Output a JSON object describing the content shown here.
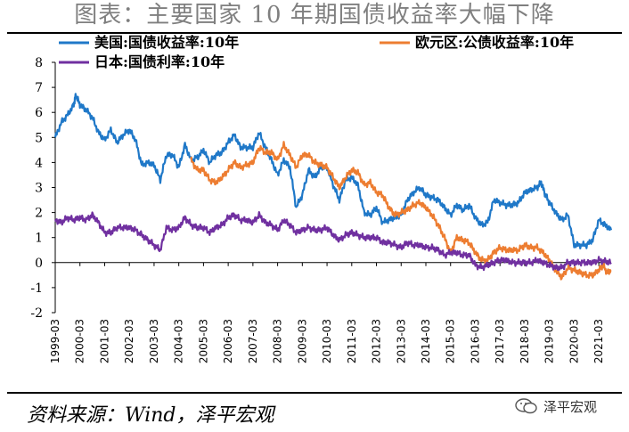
{
  "page": {
    "title": "图表：主要国家 10 年期国债收益率大幅下降",
    "source": "资料来源：Wind，泽平宏观",
    "watermark": "泽平宏观"
  },
  "chart_data": {
    "type": "line",
    "title": "",
    "xlabel": "",
    "ylabel": "",
    "ylim": [
      -2,
      8
    ],
    "yticks": [
      8,
      7,
      6,
      5,
      4,
      3,
      2,
      1,
      0,
      -1,
      -2
    ],
    "x_range": [
      "1999-03",
      "2021-09"
    ],
    "xticks": [
      "1999-03",
      "2000-03",
      "2001-03",
      "2002-03",
      "2003-03",
      "2004-03",
      "2005-03",
      "2006-03",
      "2007-03",
      "2008-03",
      "2009-03",
      "2010-03",
      "2011-03",
      "2012-03",
      "2013-03",
      "2014-03",
      "2015-03",
      "2016-03",
      "2017-03",
      "2018-03",
      "2019-03",
      "2020-03",
      "2021-03"
    ],
    "legend_position": "top",
    "grid": false,
    "series": [
      {
        "name": "美国:国债收益率:10年",
        "color": "#1f78c8",
        "points": [
          [
            "1999-03",
            5.0
          ],
          [
            "1999-06",
            5.6
          ],
          [
            "1999-09",
            5.9
          ],
          [
            "1999-12",
            6.3
          ],
          [
            "2000-01",
            6.7
          ],
          [
            "2000-03",
            6.3
          ],
          [
            "2000-06",
            6.1
          ],
          [
            "2000-09",
            5.8
          ],
          [
            "2000-12",
            5.2
          ],
          [
            "2001-03",
            4.9
          ],
          [
            "2001-06",
            5.3
          ],
          [
            "2001-09",
            4.8
          ],
          [
            "2001-12",
            5.1
          ],
          [
            "2002-03",
            5.3
          ],
          [
            "2002-06",
            4.9
          ],
          [
            "2002-09",
            3.9
          ],
          [
            "2002-12",
            4.0
          ],
          [
            "2003-03",
            3.9
          ],
          [
            "2003-06",
            3.3
          ],
          [
            "2003-09",
            4.3
          ],
          [
            "2003-12",
            4.3
          ],
          [
            "2004-03",
            3.8
          ],
          [
            "2004-06",
            4.7
          ],
          [
            "2004-09",
            4.1
          ],
          [
            "2004-12",
            4.2
          ],
          [
            "2005-03",
            4.5
          ],
          [
            "2005-06",
            4.0
          ],
          [
            "2005-09",
            4.3
          ],
          [
            "2005-12",
            4.4
          ],
          [
            "2006-03",
            4.8
          ],
          [
            "2006-06",
            5.1
          ],
          [
            "2006-09",
            4.6
          ],
          [
            "2006-12",
            4.6
          ],
          [
            "2007-03",
            4.6
          ],
          [
            "2007-06",
            5.2
          ],
          [
            "2007-09",
            4.6
          ],
          [
            "2007-12",
            4.1
          ],
          [
            "2008-03",
            3.5
          ],
          [
            "2008-06",
            4.1
          ],
          [
            "2008-09",
            3.8
          ],
          [
            "2008-12",
            2.2
          ],
          [
            "2009-03",
            2.7
          ],
          [
            "2009-06",
            3.7
          ],
          [
            "2009-09",
            3.4
          ],
          [
            "2009-12",
            3.8
          ],
          [
            "2010-03",
            3.8
          ],
          [
            "2010-06",
            3.1
          ],
          [
            "2010-09",
            2.5
          ],
          [
            "2010-12",
            3.3
          ],
          [
            "2011-03",
            3.4
          ],
          [
            "2011-06",
            3.1
          ],
          [
            "2011-09",
            2.0
          ],
          [
            "2011-12",
            1.9
          ],
          [
            "2012-03",
            2.2
          ],
          [
            "2012-06",
            1.6
          ],
          [
            "2012-09",
            1.7
          ],
          [
            "2012-12",
            1.8
          ],
          [
            "2013-03",
            1.9
          ],
          [
            "2013-06",
            2.5
          ],
          [
            "2013-09",
            2.8
          ],
          [
            "2013-12",
            3.0
          ],
          [
            "2014-03",
            2.7
          ],
          [
            "2014-06",
            2.6
          ],
          [
            "2014-09",
            2.5
          ],
          [
            "2014-12",
            2.2
          ],
          [
            "2015-03",
            1.9
          ],
          [
            "2015-06",
            2.3
          ],
          [
            "2015-09",
            2.1
          ],
          [
            "2015-12",
            2.3
          ],
          [
            "2016-03",
            1.8
          ],
          [
            "2016-06",
            1.5
          ],
          [
            "2016-09",
            1.6
          ],
          [
            "2016-12",
            2.5
          ],
          [
            "2017-03",
            2.4
          ],
          [
            "2017-06",
            2.3
          ],
          [
            "2017-09",
            2.3
          ],
          [
            "2017-12",
            2.4
          ],
          [
            "2018-03",
            2.8
          ],
          [
            "2018-06",
            2.9
          ],
          [
            "2018-09",
            3.0
          ],
          [
            "2018-11",
            3.2
          ],
          [
            "2019-01",
            2.7
          ],
          [
            "2019-03",
            2.4
          ],
          [
            "2019-06",
            2.0
          ],
          [
            "2019-09",
            1.7
          ],
          [
            "2019-12",
            1.9
          ],
          [
            "2020-03",
            0.7
          ],
          [
            "2020-06",
            0.7
          ],
          [
            "2020-09",
            0.7
          ],
          [
            "2020-12",
            0.9
          ],
          [
            "2021-03",
            1.7
          ],
          [
            "2021-06",
            1.5
          ],
          [
            "2021-09",
            1.3
          ]
        ]
      },
      {
        "name": "欧元区:公债收益率:10年",
        "color": "#ed7d31",
        "points": [
          [
            "2004-09",
            4.1
          ],
          [
            "2004-12",
            3.7
          ],
          [
            "2005-03",
            3.7
          ],
          [
            "2005-06",
            3.3
          ],
          [
            "2005-09",
            3.2
          ],
          [
            "2005-12",
            3.4
          ],
          [
            "2006-03",
            3.7
          ],
          [
            "2006-06",
            4.0
          ],
          [
            "2006-09",
            3.8
          ],
          [
            "2006-12",
            3.9
          ],
          [
            "2007-03",
            4.0
          ],
          [
            "2007-06",
            4.6
          ],
          [
            "2007-09",
            4.4
          ],
          [
            "2007-12",
            4.4
          ],
          [
            "2008-03",
            4.1
          ],
          [
            "2008-06",
            4.7
          ],
          [
            "2008-09",
            4.3
          ],
          [
            "2008-12",
            3.8
          ],
          [
            "2009-03",
            4.3
          ],
          [
            "2009-06",
            4.3
          ],
          [
            "2009-09",
            4.0
          ],
          [
            "2009-12",
            3.9
          ],
          [
            "2010-03",
            3.8
          ],
          [
            "2010-06",
            3.4
          ],
          [
            "2010-09",
            3.0
          ],
          [
            "2010-12",
            3.4
          ],
          [
            "2011-03",
            3.7
          ],
          [
            "2011-06",
            3.6
          ],
          [
            "2011-09",
            3.1
          ],
          [
            "2011-12",
            3.2
          ],
          [
            "2012-03",
            2.8
          ],
          [
            "2012-06",
            2.7
          ],
          [
            "2012-09",
            2.2
          ],
          [
            "2012-12",
            1.9
          ],
          [
            "2013-03",
            2.0
          ],
          [
            "2013-06",
            2.1
          ],
          [
            "2013-09",
            2.3
          ],
          [
            "2013-12",
            2.4
          ],
          [
            "2014-03",
            2.2
          ],
          [
            "2014-06",
            1.9
          ],
          [
            "2014-09",
            1.5
          ],
          [
            "2014-12",
            1.0
          ],
          [
            "2015-03",
            0.4
          ],
          [
            "2015-06",
            1.0
          ],
          [
            "2015-09",
            0.9
          ],
          [
            "2015-12",
            0.8
          ],
          [
            "2016-03",
            0.4
          ],
          [
            "2016-06",
            0.1
          ],
          [
            "2016-09",
            0.1
          ],
          [
            "2016-12",
            0.4
          ],
          [
            "2017-03",
            0.6
          ],
          [
            "2017-06",
            0.5
          ],
          [
            "2017-09",
            0.5
          ],
          [
            "2017-12",
            0.5
          ],
          [
            "2018-03",
            0.7
          ],
          [
            "2018-06",
            0.6
          ],
          [
            "2018-09",
            0.6
          ],
          [
            "2018-12",
            0.4
          ],
          [
            "2019-03",
            0.1
          ],
          [
            "2019-06",
            -0.3
          ],
          [
            "2019-09",
            -0.6
          ],
          [
            "2019-12",
            -0.2
          ],
          [
            "2020-03",
            -0.3
          ],
          [
            "2020-06",
            -0.4
          ],
          [
            "2020-09",
            -0.5
          ],
          [
            "2020-12",
            -0.5
          ],
          [
            "2021-03",
            -0.3
          ],
          [
            "2021-05",
            -0.1
          ],
          [
            "2021-07",
            -0.4
          ],
          [
            "2021-09",
            -0.3
          ]
        ]
      },
      {
        "name": "日本:国债利率:10年",
        "color": "#7030a0",
        "points": [
          [
            "1999-03",
            1.7
          ],
          [
            "1999-06",
            1.6
          ],
          [
            "1999-09",
            1.8
          ],
          [
            "1999-12",
            1.7
          ],
          [
            "2000-03",
            1.8
          ],
          [
            "2000-06",
            1.7
          ],
          [
            "2000-09",
            1.9
          ],
          [
            "2000-12",
            1.6
          ],
          [
            "2001-03",
            1.2
          ],
          [
            "2001-06",
            1.2
          ],
          [
            "2001-09",
            1.4
          ],
          [
            "2001-12",
            1.4
          ],
          [
            "2002-03",
            1.4
          ],
          [
            "2002-06",
            1.3
          ],
          [
            "2002-09",
            1.1
          ],
          [
            "2002-12",
            0.9
          ],
          [
            "2003-03",
            0.7
          ],
          [
            "2003-06",
            0.5
          ],
          [
            "2003-09",
            1.4
          ],
          [
            "2003-12",
            1.3
          ],
          [
            "2004-03",
            1.4
          ],
          [
            "2004-06",
            1.8
          ],
          [
            "2004-09",
            1.5
          ],
          [
            "2004-12",
            1.4
          ],
          [
            "2005-03",
            1.4
          ],
          [
            "2005-06",
            1.2
          ],
          [
            "2005-09",
            1.4
          ],
          [
            "2005-12",
            1.5
          ],
          [
            "2006-03",
            1.8
          ],
          [
            "2006-06",
            1.9
          ],
          [
            "2006-09",
            1.7
          ],
          [
            "2006-12",
            1.7
          ],
          [
            "2007-03",
            1.6
          ],
          [
            "2007-06",
            1.9
          ],
          [
            "2007-09",
            1.6
          ],
          [
            "2007-12",
            1.5
          ],
          [
            "2008-03",
            1.3
          ],
          [
            "2008-06",
            1.7
          ],
          [
            "2008-09",
            1.5
          ],
          [
            "2008-12",
            1.2
          ],
          [
            "2009-03",
            1.3
          ],
          [
            "2009-06",
            1.4
          ],
          [
            "2009-09",
            1.3
          ],
          [
            "2009-12",
            1.3
          ],
          [
            "2010-03",
            1.4
          ],
          [
            "2010-06",
            1.1
          ],
          [
            "2010-09",
            0.9
          ],
          [
            "2010-12",
            1.1
          ],
          [
            "2011-03",
            1.2
          ],
          [
            "2011-06",
            1.1
          ],
          [
            "2011-09",
            1.0
          ],
          [
            "2011-12",
            1.0
          ],
          [
            "2012-03",
            1.0
          ],
          [
            "2012-06",
            0.8
          ],
          [
            "2012-09",
            0.8
          ],
          [
            "2012-12",
            0.7
          ],
          [
            "2013-03",
            0.6
          ],
          [
            "2013-06",
            0.8
          ],
          [
            "2013-09",
            0.7
          ],
          [
            "2013-12",
            0.7
          ],
          [
            "2014-03",
            0.6
          ],
          [
            "2014-06",
            0.6
          ],
          [
            "2014-09",
            0.5
          ],
          [
            "2014-12",
            0.3
          ],
          [
            "2015-03",
            0.4
          ],
          [
            "2015-06",
            0.4
          ],
          [
            "2015-09",
            0.3
          ],
          [
            "2015-12",
            0.3
          ],
          [
            "2016-03",
            -0.1
          ],
          [
            "2016-06",
            -0.2
          ],
          [
            "2016-09",
            -0.1
          ],
          [
            "2016-12",
            0.0
          ],
          [
            "2017-03",
            0.1
          ],
          [
            "2017-06",
            0.1
          ],
          [
            "2017-09",
            0.0
          ],
          [
            "2017-12",
            0.0
          ],
          [
            "2018-03",
            0.0
          ],
          [
            "2018-06",
            0.0
          ],
          [
            "2018-09",
            0.1
          ],
          [
            "2018-12",
            0.0
          ],
          [
            "2019-03",
            -0.1
          ],
          [
            "2019-06",
            -0.2
          ],
          [
            "2019-09",
            -0.2
          ],
          [
            "2019-12",
            0.0
          ],
          [
            "2020-03",
            0.0
          ],
          [
            "2020-06",
            0.0
          ],
          [
            "2020-09",
            0.0
          ],
          [
            "2020-12",
            0.0
          ],
          [
            "2021-03",
            0.1
          ],
          [
            "2021-06",
            0.05
          ],
          [
            "2021-09",
            0.0
          ]
        ]
      }
    ]
  }
}
